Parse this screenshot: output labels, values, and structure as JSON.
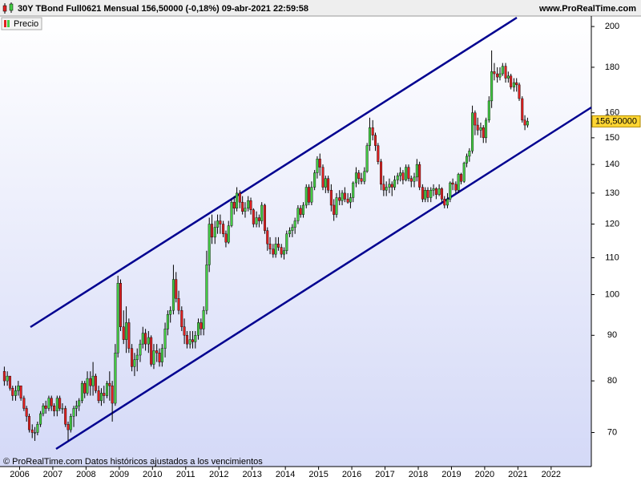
{
  "chart_data": {
    "type": "candlestick",
    "title": "30Y TBond Full0621 Mensual 156,50000 (-0,18%) 09-abr-2021 22:59:58",
    "site": "www.ProRealTime.com",
    "legend": "Precio",
    "footer": "© ProRealTime.com  Datos históricos ajustados a los vencimientos",
    "up_color": "#44cc44",
    "down_color": "#e02020",
    "log_scale": true,
    "last_price": {
      "value": 156.5,
      "label": "156,50000"
    },
    "xlim": [
      2005.41,
      2023.21
    ],
    "xticks": [
      2006,
      2007,
      2008,
      2009,
      2010,
      2011,
      2012,
      2013,
      2014,
      2015,
      2016,
      2017,
      2018,
      2019,
      2020,
      2021,
      2022
    ],
    "ylim": [
      64.1,
      205.5
    ],
    "yticks": [
      70,
      80,
      90,
      100,
      110,
      120,
      130,
      140,
      150,
      160,
      180,
      200
    ],
    "x": [
      2005.54,
      2005.63,
      2005.71,
      2005.79,
      2005.88,
      2005.96,
      2006.04,
      2006.13,
      2006.21,
      2006.29,
      2006.38,
      2006.46,
      2006.54,
      2006.63,
      2006.71,
      2006.79,
      2006.88,
      2006.96,
      2007.04,
      2007.13,
      2007.21,
      2007.29,
      2007.38,
      2007.46,
      2007.54,
      2007.63,
      2007.71,
      2007.79,
      2007.88,
      2007.96,
      2008.04,
      2008.13,
      2008.21,
      2008.29,
      2008.38,
      2008.46,
      2008.54,
      2008.63,
      2008.71,
      2008.79,
      2008.88,
      2008.96,
      2009.04,
      2009.13,
      2009.21,
      2009.29,
      2009.38,
      2009.46,
      2009.54,
      2009.63,
      2009.71,
      2009.79,
      2009.88,
      2009.96,
      2010.04,
      2010.13,
      2010.21,
      2010.29,
      2010.38,
      2010.46,
      2010.54,
      2010.63,
      2010.71,
      2010.79,
      2010.88,
      2010.96,
      2011.04,
      2011.13,
      2011.21,
      2011.29,
      2011.38,
      2011.46,
      2011.54,
      2011.63,
      2011.71,
      2011.79,
      2011.88,
      2011.96,
      2012.04,
      2012.13,
      2012.21,
      2012.29,
      2012.38,
      2012.46,
      2012.54,
      2012.63,
      2012.71,
      2012.79,
      2012.88,
      2012.96,
      2013.04,
      2013.13,
      2013.21,
      2013.29,
      2013.38,
      2013.46,
      2013.54,
      2013.63,
      2013.71,
      2013.79,
      2013.88,
      2013.96,
      2014.04,
      2014.13,
      2014.21,
      2014.29,
      2014.38,
      2014.46,
      2014.54,
      2014.63,
      2014.71,
      2014.79,
      2014.88,
      2014.96,
      2015.04,
      2015.13,
      2015.21,
      2015.29,
      2015.38,
      2015.46,
      2015.54,
      2015.63,
      2015.71,
      2015.79,
      2015.88,
      2015.96,
      2016.04,
      2016.13,
      2016.21,
      2016.29,
      2016.38,
      2016.46,
      2016.54,
      2016.63,
      2016.71,
      2016.79,
      2016.88,
      2016.96,
      2017.04,
      2017.13,
      2017.21,
      2017.29,
      2017.38,
      2017.46,
      2017.54,
      2017.63,
      2017.71,
      2017.79,
      2017.88,
      2017.96,
      2018.04,
      2018.13,
      2018.21,
      2018.29,
      2018.38,
      2018.46,
      2018.54,
      2018.63,
      2018.71,
      2018.79,
      2018.88,
      2018.96,
      2019.04,
      2019.13,
      2019.21,
      2019.29,
      2019.38,
      2019.46,
      2019.54,
      2019.63,
      2019.71,
      2019.79,
      2019.88,
      2019.96,
      2020.04,
      2020.13,
      2020.21,
      2020.29,
      2020.38,
      2020.46,
      2020.54,
      2020.63,
      2020.71,
      2020.79,
      2020.88,
      2020.96,
      2021.04,
      2021.13,
      2021.21,
      2021.29
    ],
    "open": [
      82,
      80,
      81,
      78.5,
      77,
      78,
      79,
      76.5,
      74.5,
      73,
      70.5,
      70,
      70,
      71.5,
      73.5,
      75,
      74.5,
      76.5,
      75,
      74,
      76.5,
      74.5,
      74.5,
      71.5,
      70.5,
      73,
      74.5,
      75,
      76,
      79.5,
      77.5,
      80.5,
      79,
      81,
      78,
      76,
      77.5,
      77,
      79.5,
      79,
      75.5,
      86,
      103,
      92,
      89,
      93,
      87,
      83,
      84.5,
      85.5,
      88,
      90.5,
      88,
      89.5,
      83.5,
      86.5,
      86,
      84,
      87,
      91.5,
      95,
      96,
      104,
      99,
      96,
      92,
      90,
      88,
      89,
      88.5,
      90,
      93,
      91.5,
      96,
      108,
      120,
      116,
      119,
      121,
      120,
      117,
      114.5,
      119.5,
      127,
      125,
      130,
      127,
      124,
      125,
      127.5,
      124.5,
      120,
      122,
      121,
      126,
      118,
      114,
      112.5,
      111,
      114,
      113,
      111,
      112,
      117,
      118,
      119,
      121,
      125,
      123,
      126,
      132,
      127,
      132,
      137,
      142,
      139,
      132,
      135,
      131,
      126,
      123,
      128.5,
      127.5,
      130,
      128,
      127,
      128.5,
      133.5,
      137,
      135,
      134,
      137.5,
      147,
      154,
      151,
      147,
      141,
      133,
      131,
      132,
      133,
      132,
      134.5,
      136,
      137,
      134.5,
      139,
      135,
      134,
      135.5,
      140,
      132,
      128,
      131,
      128.5,
      131,
      131.5,
      129.5,
      131.5,
      128,
      126,
      128,
      133.5,
      133,
      131,
      136.5,
      134,
      140.5,
      143,
      145,
      160,
      155,
      153,
      154,
      150,
      157,
      165,
      178,
      177,
      175.5,
      177,
      180.5,
      175,
      176,
      171,
      173,
      172,
      166,
      157,
      155
    ],
    "high": [
      83,
      82,
      81,
      79,
      79,
      80,
      79,
      77,
      75,
      73.5,
      71.5,
      71,
      72,
      74,
      75.5,
      76,
      77,
      77,
      75.5,
      77,
      77,
      75.5,
      75,
      72,
      73.5,
      75,
      76,
      76.5,
      80,
      80,
      82,
      82,
      84,
      81.5,
      79,
      78.5,
      79,
      80,
      82,
      80,
      88,
      105,
      104,
      96,
      97,
      94,
      88,
      86,
      87,
      89,
      92,
      91.5,
      91,
      90,
      88,
      88,
      87,
      88,
      93,
      96,
      97,
      108,
      106,
      101,
      97,
      94,
      91,
      91,
      91,
      91,
      94,
      94,
      97,
      112,
      122,
      123,
      121,
      123,
      123,
      121,
      118,
      121,
      128,
      129,
      132,
      131,
      129,
      127,
      129,
      128.5,
      125,
      124,
      123,
      127,
      126.5,
      119,
      116,
      114,
      116,
      116,
      114,
      113,
      118,
      119,
      120,
      122,
      126,
      126,
      127,
      133,
      133,
      134,
      138,
      143,
      144,
      140,
      136,
      136,
      133,
      128,
      130,
      131,
      131,
      132,
      130,
      130,
      134,
      139,
      138,
      137,
      139,
      148,
      158,
      157,
      152,
      148,
      142,
      136,
      134,
      135,
      134,
      136,
      137,
      139,
      138,
      140,
      140,
      136,
      137,
      142,
      141,
      133,
      132,
      132,
      132,
      133,
      132,
      133,
      132,
      129,
      130,
      134,
      135,
      134,
      137,
      137,
      141,
      144,
      146,
      163,
      161,
      158,
      156,
      155,
      158,
      167,
      188,
      182,
      180,
      180,
      182,
      182,
      178,
      177,
      175,
      175,
      173,
      167,
      159,
      158
    ],
    "low": [
      79,
      79,
      78,
      76,
      76,
      77,
      76,
      74,
      72,
      70,
      69,
      68.5,
      69.5,
      71,
      73,
      73.5,
      74,
      74,
      73,
      73,
      74,
      73.5,
      71,
      68.5,
      70,
      71,
      73,
      74,
      75.5,
      76.5,
      77,
      77,
      77,
      77.5,
      75.5,
      75,
      75.5,
      76.5,
      76,
      72,
      75,
      85,
      91,
      88,
      86,
      86,
      82,
      81,
      82,
      84,
      87,
      86.5,
      86,
      83,
      82.5,
      84,
      83,
      83,
      85,
      90,
      93,
      95,
      98,
      95,
      91,
      88,
      87,
      87,
      87,
      87,
      89,
      90,
      90,
      95,
      106,
      114,
      114,
      117,
      117,
      116,
      113,
      114,
      119,
      123,
      124,
      125,
      123,
      122,
      124,
      123,
      119,
      119,
      119,
      120,
      117,
      112,
      111,
      110,
      110,
      112,
      110,
      109.5,
      111,
      116,
      116,
      117,
      120,
      122,
      122,
      125,
      126,
      126,
      131,
      135,
      136,
      131,
      130,
      130,
      124,
      121,
      122,
      126,
      126,
      127,
      126.5,
      125,
      127,
      132,
      133,
      133,
      133,
      137,
      145,
      149,
      145,
      140,
      131,
      129,
      129,
      130,
      129,
      131,
      133,
      134,
      133,
      134,
      134,
      132,
      132,
      134,
      131,
      127,
      127,
      127,
      127,
      129,
      128,
      129,
      127,
      125,
      125,
      127,
      131,
      130,
      130,
      133,
      133.5,
      139,
      141,
      144,
      151,
      151,
      150,
      148,
      148,
      156,
      162,
      174,
      173,
      174,
      176,
      173,
      173,
      170,
      169,
      169,
      165,
      156,
      153,
      154
    ],
    "close": [
      80,
      81,
      78.5,
      77,
      78,
      79,
      76.5,
      74.5,
      73,
      70.5,
      70,
      70,
      71.5,
      73.5,
      75,
      74.5,
      76.5,
      75,
      74,
      76.5,
      74.5,
      74.5,
      71.5,
      70.5,
      73,
      74.5,
      75,
      76,
      79.5,
      77.5,
      80.5,
      79,
      81,
      78,
      76,
      77.5,
      77,
      79.5,
      79,
      75.5,
      86,
      103,
      92,
      89,
      93,
      87,
      83,
      84.5,
      85.5,
      88,
      90.5,
      88,
      89.5,
      83.5,
      86.5,
      86,
      84,
      87,
      91.5,
      95,
      96,
      104,
      99,
      96,
      92,
      90,
      88,
      89,
      88.5,
      90,
      93,
      91.5,
      96,
      108,
      120,
      116,
      119,
      121,
      120,
      117,
      114.5,
      119.5,
      127,
      125,
      130,
      127,
      124,
      125,
      127.5,
      124.5,
      120,
      122,
      121,
      126,
      118,
      114,
      112.5,
      111,
      114,
      113,
      111,
      112,
      117,
      118,
      119,
      121,
      125,
      123,
      126,
      132,
      127,
      132,
      137,
      142,
      139,
      132,
      135,
      131,
      126,
      123,
      128.5,
      127.5,
      130,
      128,
      127,
      128.5,
      133.5,
      137,
      135,
      134,
      137.5,
      147,
      154,
      151,
      147,
      141,
      133,
      131,
      132,
      133,
      132,
      134.5,
      136,
      137,
      134.5,
      139,
      135,
      134,
      135.5,
      140,
      132,
      128,
      131,
      128.5,
      131,
      131.5,
      129.5,
      131.5,
      128,
      126,
      128,
      133.5,
      133,
      131,
      136.5,
      134,
      140.5,
      143,
      145,
      160,
      155,
      153,
      154,
      150,
      157,
      165,
      178,
      177,
      175.5,
      177,
      180.5,
      175,
      176,
      171,
      173,
      172,
      166,
      157,
      155,
      156.5
    ]
  }
}
